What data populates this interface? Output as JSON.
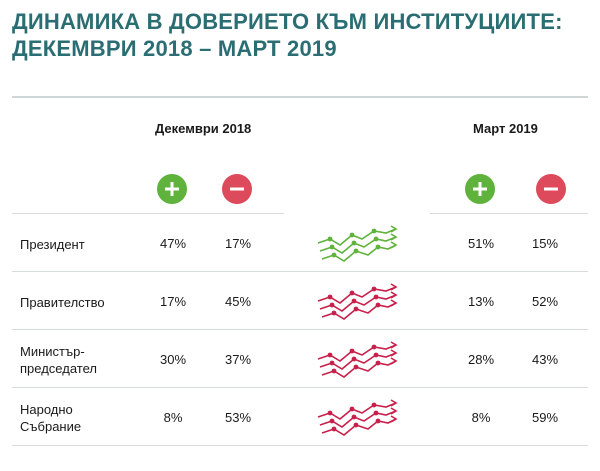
{
  "title_line1": "ДИНАМИКА В ДОВЕРИЕТО КЪМ ИНСТИТУЦИИТЕ:",
  "title_line2": "ДЕКЕМВРИ 2018 – МАРТ 2019",
  "periods": [
    "Декември 2018",
    "Март 2019"
  ],
  "icons": {
    "positive": "plus-circle-icon",
    "negative": "minus-circle-icon"
  },
  "colors": {
    "title": "#2a6e73",
    "positive": "#5fb23b",
    "negative": "#dd4a5b"
  },
  "rows": [
    {
      "label": "Президент",
      "dec_pos": "47%",
      "dec_neg": "17%",
      "mar_pos": "51%",
      "mar_neg": "15%",
      "trend": "up"
    },
    {
      "label": "Правителство",
      "dec_pos": "17%",
      "dec_neg": "45%",
      "mar_pos": "13%",
      "mar_neg": "52%",
      "trend": "down"
    },
    {
      "label": "Министър-\nпредседател",
      "dec_pos": "30%",
      "dec_neg": "37%",
      "mar_pos": "28%",
      "mar_neg": "43%",
      "trend": "down"
    },
    {
      "label": "Народно\nСъбрание",
      "dec_pos": "8%",
      "dec_neg": "53%",
      "mar_pos": "8%",
      "mar_neg": "59%",
      "trend": "down"
    }
  ],
  "chart_data": {
    "type": "table",
    "categories": [
      "Президент",
      "Правителство",
      "Министър-председател",
      "Народно Събрание"
    ],
    "series": [
      {
        "name": "Декември 2018 +",
        "values": [
          47,
          17,
          30,
          8
        ]
      },
      {
        "name": "Декември 2018 −",
        "values": [
          17,
          45,
          37,
          53
        ]
      },
      {
        "name": "Март 2019 +",
        "values": [
          51,
          13,
          28,
          8
        ]
      },
      {
        "name": "Март 2019 −",
        "values": [
          15,
          52,
          43,
          59
        ]
      }
    ],
    "unit": "%"
  }
}
